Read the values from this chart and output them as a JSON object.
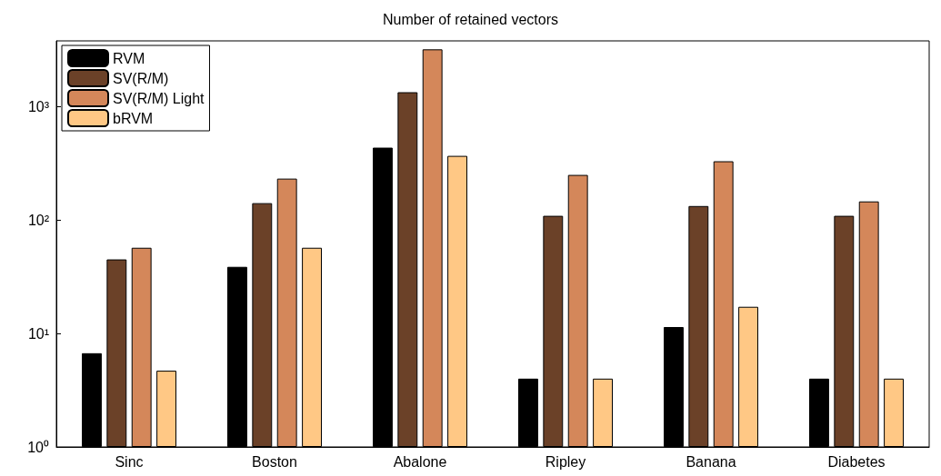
{
  "chart_data": {
    "type": "bar",
    "title": "Number of retained vectors",
    "categories": [
      "Sinc",
      "Boston",
      "Abalone",
      "Ripley",
      "Banana",
      "Diabetes"
    ],
    "series": [
      {
        "name": "RVM",
        "color": "#000000",
        "values": [
          6.7,
          38.7,
          435,
          4,
          11.4,
          4
        ]
      },
      {
        "name": "SV(R/M)",
        "color": "#6b4128",
        "values": [
          45,
          141,
          1340,
          109,
          133,
          109
        ]
      },
      {
        "name": "SV(R/M) Light",
        "color": "#d4875a",
        "values": [
          57,
          232,
          3200,
          250,
          330,
          146
        ]
      },
      {
        "name": "bRVM",
        "color": "#ffc885",
        "values": [
          4.7,
          57,
          368,
          4,
          17.2,
          4
        ]
      }
    ],
    "log": "y",
    "ylim": [
      1,
      3800
    ],
    "yticks": [
      {
        "value": 1,
        "label": "10⁰"
      },
      {
        "value": 10,
        "label": "10¹"
      },
      {
        "value": 100,
        "label": "10²"
      },
      {
        "value": 1000,
        "label": "10³"
      }
    ],
    "grid": false,
    "legend": "top left"
  }
}
